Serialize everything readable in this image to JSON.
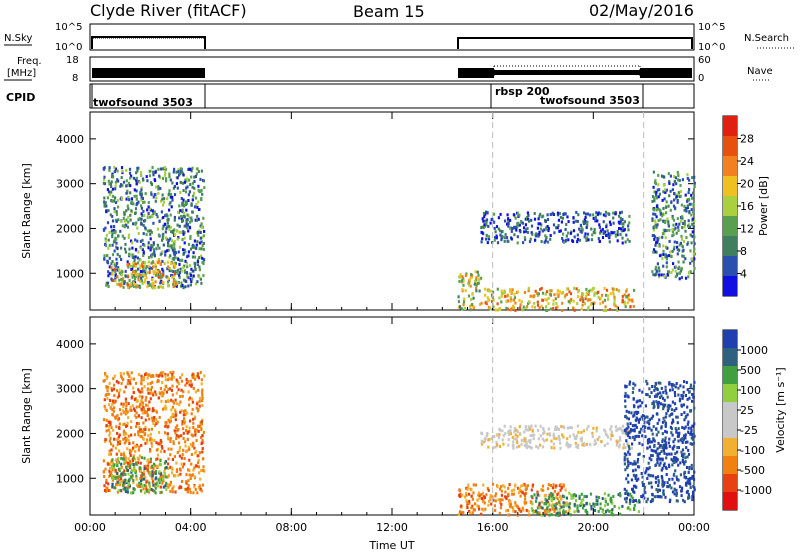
{
  "header": {
    "station": "Clyde River (fitACF)",
    "beam": "Beam 15",
    "date": "02/May/2016"
  },
  "strip": {
    "nsky_label": "N.Sky",
    "nsky_ticks": [
      "10^5",
      "10^0"
    ],
    "nsearch_label": "N.Search",
    "nsearch_ticks": [
      "10^5",
      "10^0"
    ],
    "freq_label_line1": "Freq.",
    "freq_label_line2": "[MHz]",
    "freq_ticks": [
      "18",
      "8"
    ],
    "nave_label": "Nave",
    "nave_ticks": [
      "60",
      "0"
    ],
    "cpid_label": "CPID",
    "cpid_segments": [
      {
        "label": "twofsound 3503",
        "start_h": 0.1,
        "end_h": 4.6
      },
      {
        "label": "rbsp 200",
        "start_h": 16.0,
        "end_h": 22.0
      },
      {
        "label": "twofsound 3503",
        "start_h": 14.6,
        "end_h": 24.0
      }
    ]
  },
  "colors": {
    "power": [
      "#1010e0",
      "#2a4fb0",
      "#3f7f60",
      "#58a050",
      "#a8d040",
      "#f0c020",
      "#f08020",
      "#e85010",
      "#e02010"
    ],
    "velocity": [
      "#e01010",
      "#e84010",
      "#f08010",
      "#f0b030",
      "#c8c8c8",
      "#c8c8c8",
      "#90d040",
      "#40a040",
      "#306080",
      "#2040b0"
    ]
  },
  "chart_data": [
    {
      "type": "heatmap",
      "title": "Power",
      "ylabel": "Slant Range [km]",
      "xlabel": "",
      "x_unit": "hours UT",
      "xlim": [
        0,
        24
      ],
      "ylim": [
        180,
        4600
      ],
      "yticks": [
        1000,
        2000,
        3000,
        4000
      ],
      "colorbar": {
        "label": "Power [dB]",
        "range": [
          0,
          32
        ],
        "ticks": [
          4,
          8,
          12,
          16,
          20,
          24,
          28
        ]
      },
      "regions": [
        {
          "x": [
            0.5,
            4.5
          ],
          "y": [
            700,
            3400
          ],
          "value_db": 12
        },
        {
          "x": [
            0.8,
            3.4
          ],
          "y": [
            700,
            1300
          ],
          "value_db": 22
        },
        {
          "x": [
            14.6,
            15.5
          ],
          "y": [
            200,
            1100
          ],
          "value_db": 18
        },
        {
          "x": [
            15.5,
            21.6
          ],
          "y": [
            200,
            700
          ],
          "value_db": 24
        },
        {
          "x": [
            15.5,
            21.4
          ],
          "y": [
            1700,
            2400
          ],
          "value_db": 6
        },
        {
          "x": [
            22.3,
            24.0
          ],
          "y": [
            900,
            3300
          ],
          "value_db": 10
        }
      ]
    },
    {
      "type": "heatmap",
      "title": "Velocity",
      "ylabel": "Slant Range [km]",
      "xlabel": "Time UT",
      "x_unit": "hours UT",
      "xlim": [
        0,
        24
      ],
      "ylim": [
        180,
        4600
      ],
      "yticks": [
        1000,
        2000,
        3000,
        4000
      ],
      "xtick_labels": [
        "00:00",
        "04:00",
        "08:00",
        "12:00",
        "16:00",
        "20:00",
        "00:00"
      ],
      "colorbar": {
        "label": "Velocity [m s⁻¹]",
        "tick_labels": [
          "1000",
          "500",
          "100",
          "25",
          "-25",
          "-100",
          "-500",
          "-1000"
        ]
      },
      "regions": [
        {
          "x": [
            0.5,
            4.5
          ],
          "y": [
            700,
            3400
          ],
          "value_ms": -200
        },
        {
          "x": [
            0.8,
            3.0
          ],
          "y": [
            700,
            1500
          ],
          "value_ms": 150
        },
        {
          "x": [
            14.6,
            19.0
          ],
          "y": [
            200,
            900
          ],
          "value_ms": -300
        },
        {
          "x": [
            17.5,
            21.8
          ],
          "y": [
            200,
            700
          ],
          "value_ms": 150
        },
        {
          "x": [
            15.5,
            21.5
          ],
          "y": [
            1700,
            2200
          ],
          "value_ms": 0
        },
        {
          "x": [
            21.2,
            24.0
          ],
          "y": [
            500,
            3200
          ],
          "value_ms": 800
        }
      ]
    }
  ]
}
